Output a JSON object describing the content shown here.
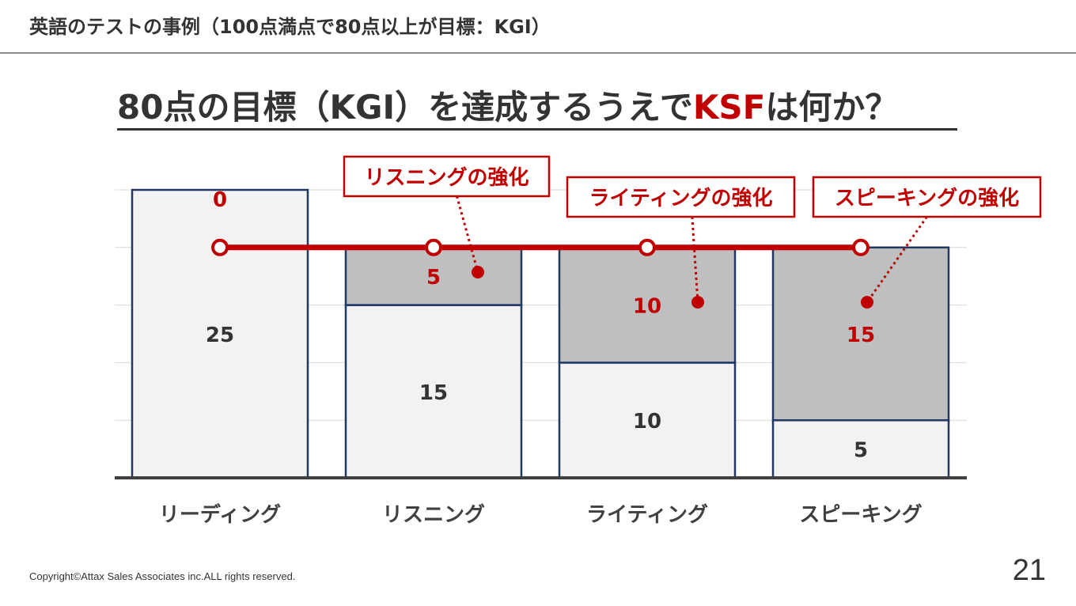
{
  "header": {
    "title": "英語のテストの事例（100点満点で80点以上が目標：KGI）"
  },
  "heading": {
    "prefix": "80点の目標（KGI）を達成するうえで",
    "accent": "KSF",
    "suffix": "は何か？"
  },
  "colors": {
    "accent": "#c00000",
    "bar_base_fill": "#f2f2f2",
    "bar_stack_fill": "#bfbfbf",
    "bar_border": "#1f3864",
    "text": "#333333"
  },
  "chart_data": {
    "type": "bar",
    "stacked": true,
    "categories": [
      "リーディング",
      "リスニング",
      "ライティング",
      "スピーキング"
    ],
    "series": [
      {
        "values": [
          25,
          15,
          10,
          5
        ]
      },
      {
        "values": [
          0,
          5,
          10,
          15
        ]
      }
    ],
    "target_line": {
      "value": 20
    },
    "ylim": [
      0,
      25
    ],
    "grid": true,
    "callouts": [
      {
        "category_index": 1,
        "label": "リスニングの強化"
      },
      {
        "category_index": 2,
        "label": "ライティングの強化"
      },
      {
        "category_index": 3,
        "label": "スピーキングの強化"
      }
    ]
  },
  "footer": {
    "copyright": "Copyright©Attax Sales Associates inc.ALL rights reserved.",
    "page_number": "21"
  }
}
